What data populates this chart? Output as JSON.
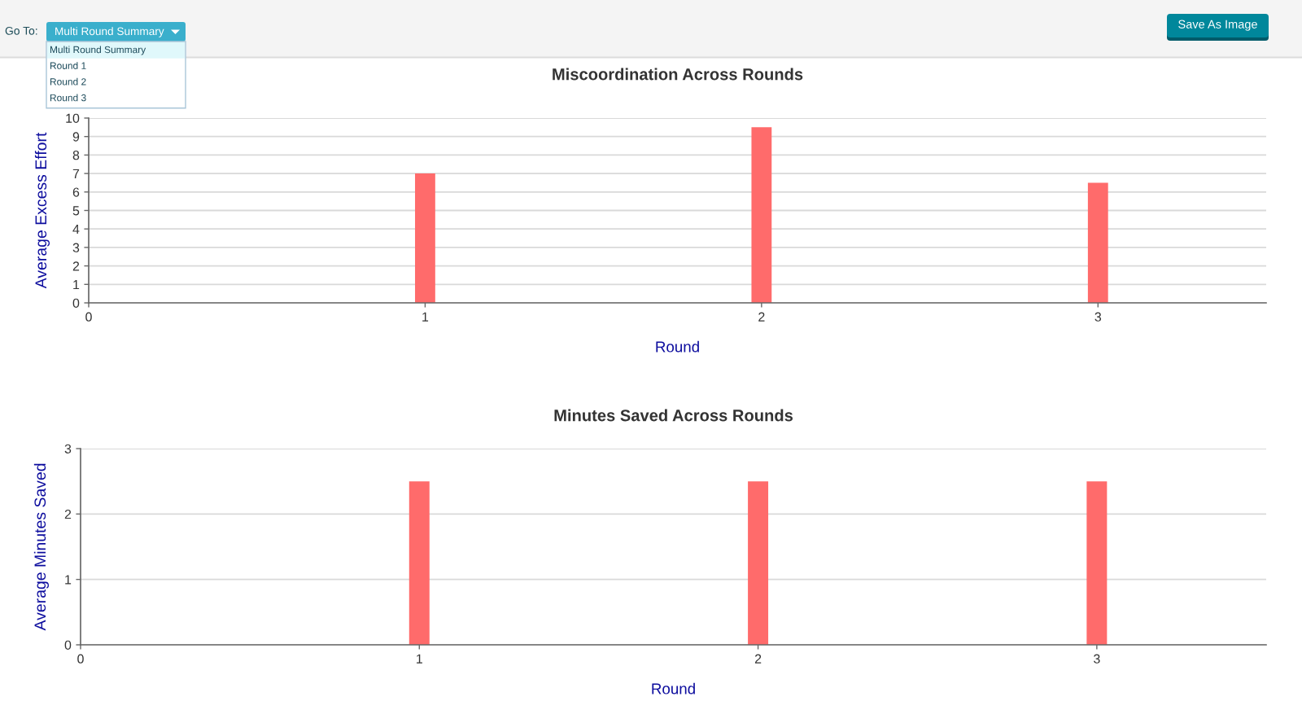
{
  "chart_data": [
    {
      "type": "other",
      "annotations": [
        "Go To:",
        "Multi Round Summary",
        "Multi Round Summary",
        "Round 1",
        "Round 2",
        "Round 3",
        "Save As Image"
      ]
    },
    {
      "type": "bar",
      "title": "Miscoordination Across Rounds",
      "xlabel": "Round",
      "ylabel": "Average Excess Effort",
      "x": [
        1,
        2,
        3
      ],
      "values": [
        7,
        9.5,
        6.5
      ],
      "color": "#ff6b6b",
      "xlim": [
        0,
        3.5
      ],
      "xticks": [
        0,
        1,
        2,
        3
      ],
      "ylim": [
        0,
        10
      ],
      "yticks": [
        0,
        1,
        2,
        3,
        4,
        5,
        6,
        7,
        8,
        9,
        10
      ],
      "grid": "y"
    },
    {
      "type": "bar",
      "title": "Minutes Saved Across Rounds",
      "xlabel": "Round",
      "ylabel": "Average Minutes Saved",
      "x": [
        1,
        2,
        3
      ],
      "values": [
        2.5,
        2.5,
        2.5
      ],
      "color": "#ff6b6b",
      "xlim": [
        0,
        3.5
      ],
      "xticks": [
        0,
        1,
        2,
        3
      ],
      "ylim": [
        0,
        3
      ],
      "yticks": [
        0,
        1,
        2,
        3
      ],
      "grid": "y"
    }
  ]
}
